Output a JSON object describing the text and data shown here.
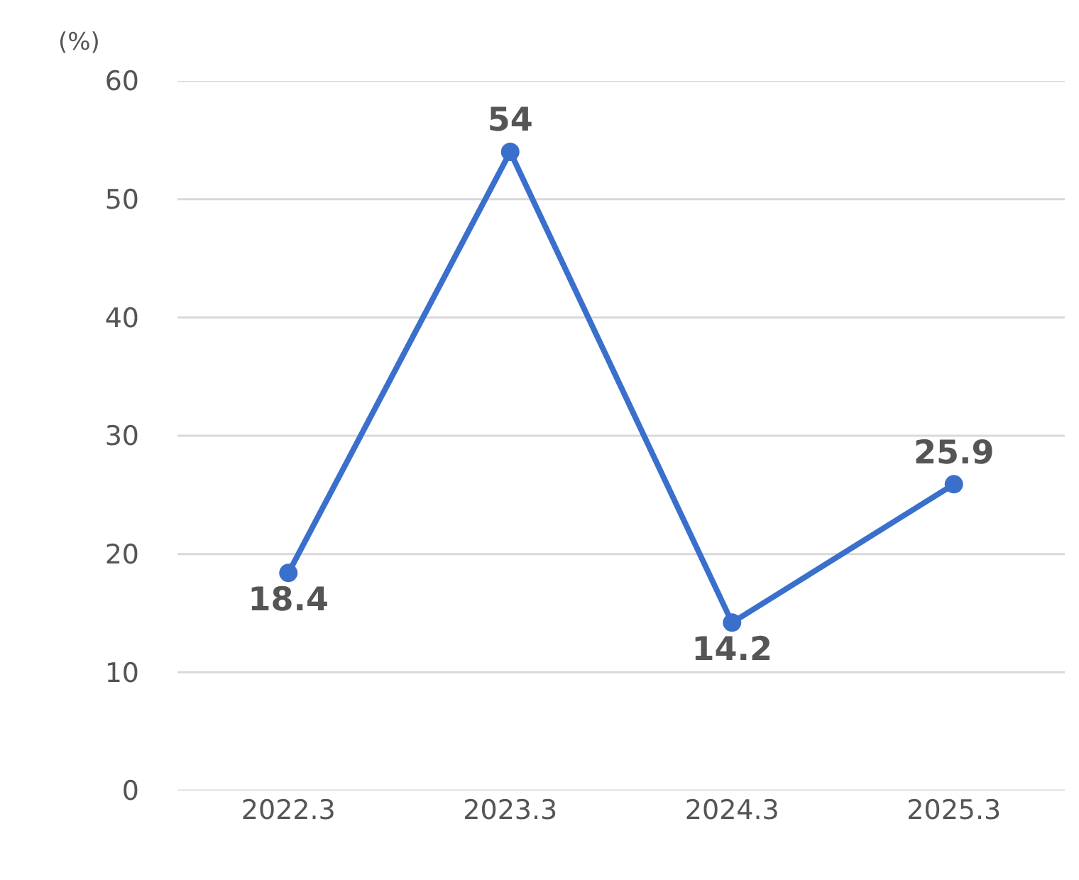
{
  "chart_data": {
    "type": "line",
    "ylabel": "(%)",
    "categories": [
      "2022.3",
      "2023.3",
      "2024.3",
      "2025.3"
    ],
    "series": [
      {
        "color": "#3a70cc",
        "values": [
          18.4,
          54,
          14.2,
          25.9
        ]
      }
    ],
    "ylim": [
      0,
      60
    ],
    "yticks": [
      0,
      10,
      20,
      30,
      40,
      50,
      60
    ],
    "grid": "y",
    "marker": "circle",
    "line_style": "solid",
    "data_labels": true
  }
}
